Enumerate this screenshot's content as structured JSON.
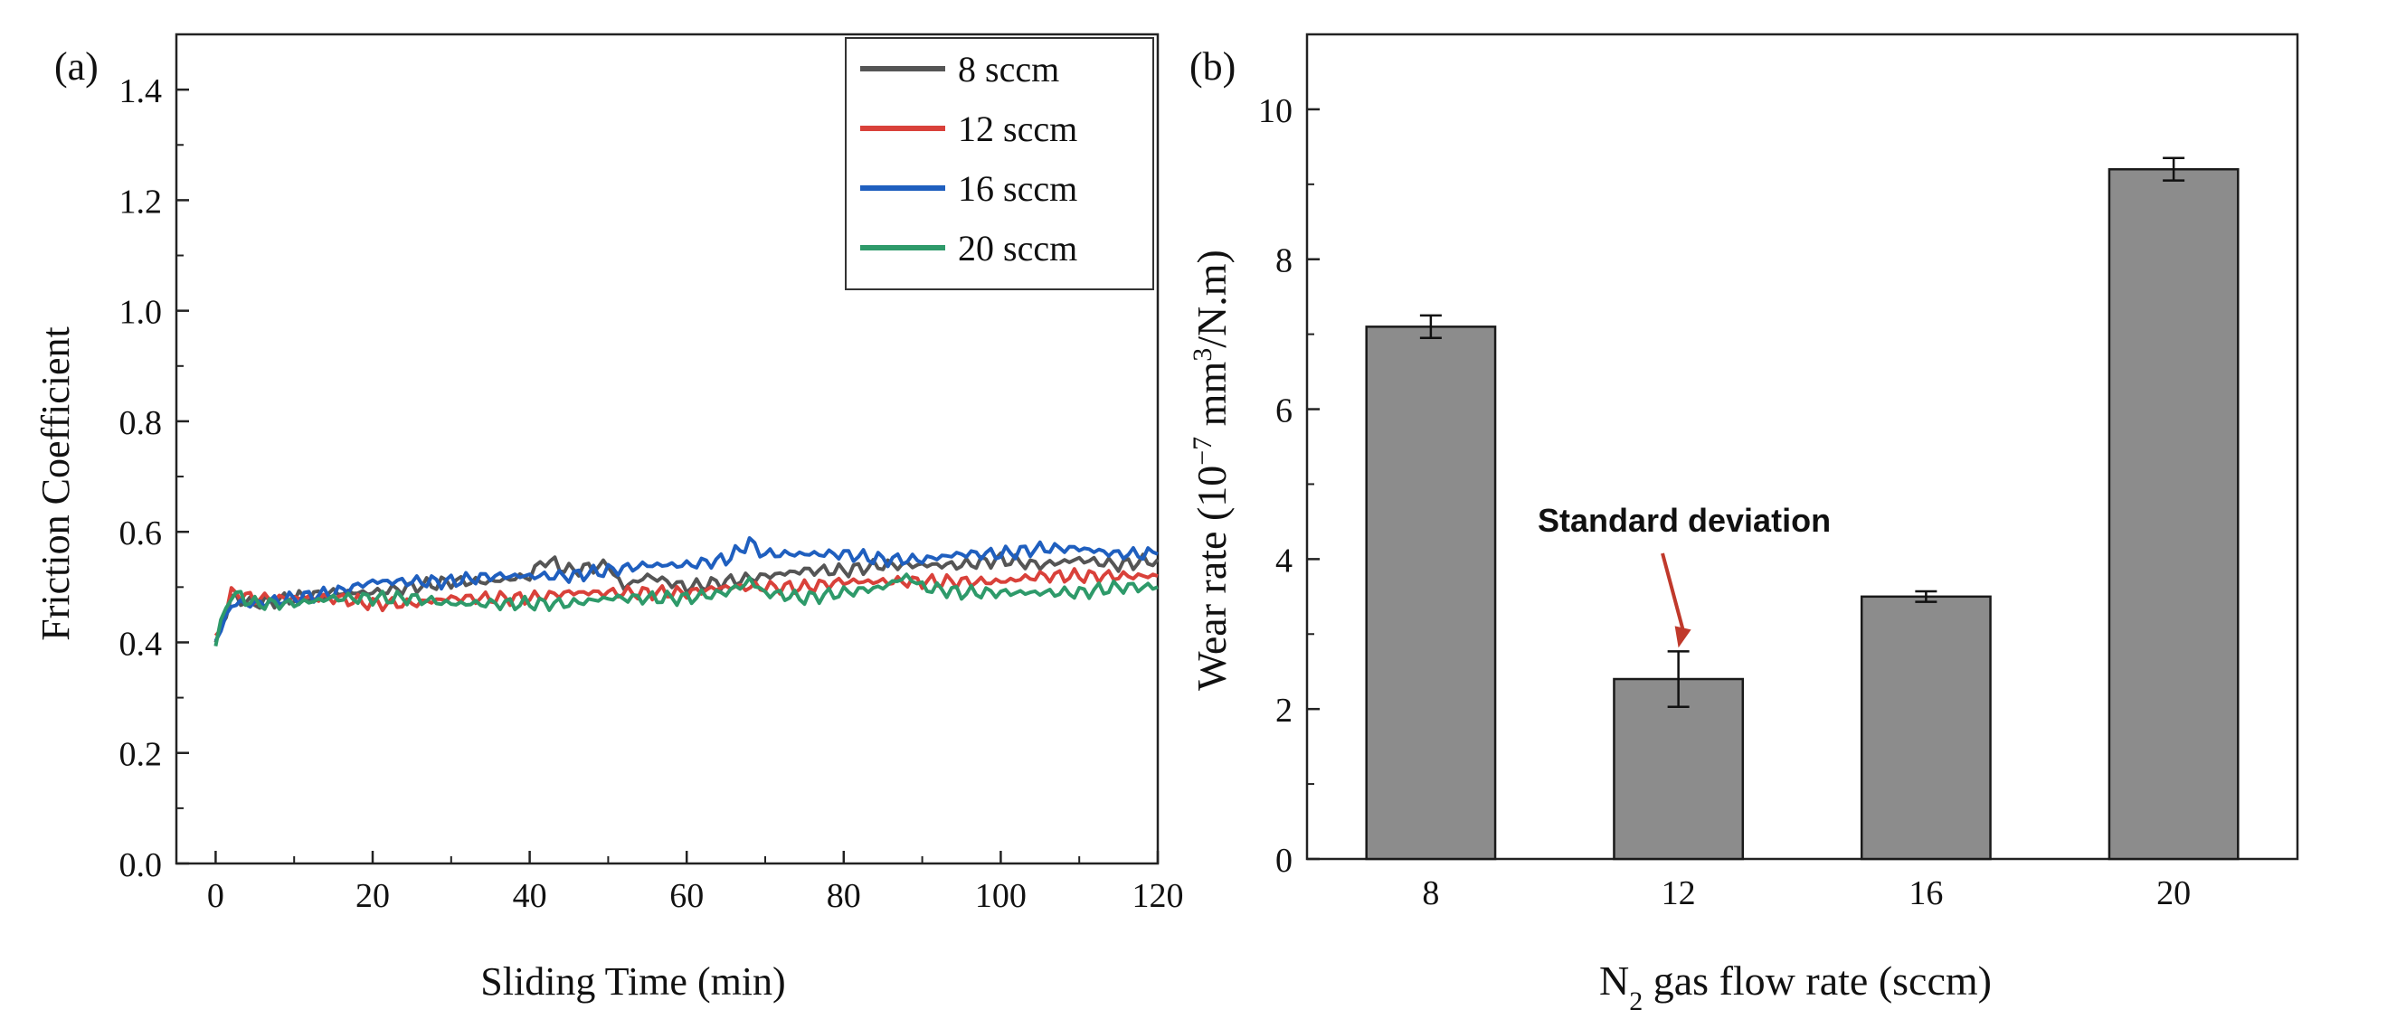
{
  "chart_data": [
    {
      "panel_label": "(a)",
      "type": "line",
      "title": "",
      "xlabel": "Sliding Time (min)",
      "ylabel": "Friction Coefficient",
      "xlim": [
        -5,
        120
      ],
      "ylim": [
        0.0,
        1.5
      ],
      "xticks": [
        "0",
        "20",
        "40",
        "60",
        "80",
        "100",
        "120"
      ],
      "yticks": [
        "0.0",
        "0.2",
        "0.4",
        "0.6",
        "0.8",
        "1.0",
        "1.2",
        "1.4"
      ],
      "legend_position": "top-right",
      "series": [
        {
          "name": "8 sccm",
          "color": "#555555",
          "x": [
            0,
            2,
            5,
            10,
            15,
            20,
            25,
            30,
            35,
            40,
            42,
            45,
            50,
            52,
            55,
            60,
            65,
            70,
            75,
            80,
            85,
            90,
            95,
            100,
            105,
            110,
            115,
            120
          ],
          "y": [
            0.4,
            0.48,
            0.47,
            0.48,
            0.49,
            0.49,
            0.5,
            0.51,
            0.51,
            0.52,
            0.55,
            0.53,
            0.54,
            0.5,
            0.52,
            0.5,
            0.51,
            0.52,
            0.53,
            0.53,
            0.54,
            0.54,
            0.54,
            0.55,
            0.54,
            0.55,
            0.54,
            0.55
          ]
        },
        {
          "name": "12 sccm",
          "color": "#d9413a",
          "x": [
            0,
            2,
            5,
            10,
            15,
            20,
            25,
            30,
            35,
            40,
            45,
            50,
            55,
            60,
            65,
            70,
            75,
            80,
            85,
            90,
            95,
            100,
            105,
            110,
            115,
            120
          ],
          "y": [
            0.4,
            0.49,
            0.48,
            0.48,
            0.48,
            0.47,
            0.47,
            0.48,
            0.48,
            0.48,
            0.49,
            0.49,
            0.49,
            0.49,
            0.5,
            0.5,
            0.5,
            0.51,
            0.51,
            0.51,
            0.51,
            0.51,
            0.52,
            0.52,
            0.52,
            0.52
          ]
        },
        {
          "name": "16 sccm",
          "color": "#1f5fbf",
          "x": [
            0,
            2,
            5,
            10,
            15,
            20,
            25,
            30,
            35,
            40,
            45,
            50,
            55,
            60,
            65,
            68,
            70,
            75,
            80,
            85,
            90,
            95,
            100,
            105,
            110,
            115,
            120
          ],
          "y": [
            0.4,
            0.47,
            0.47,
            0.48,
            0.49,
            0.51,
            0.51,
            0.51,
            0.52,
            0.52,
            0.52,
            0.53,
            0.54,
            0.54,
            0.55,
            0.58,
            0.56,
            0.56,
            0.56,
            0.55,
            0.55,
            0.56,
            0.56,
            0.57,
            0.57,
            0.56,
            0.56
          ]
        },
        {
          "name": "20 sccm",
          "color": "#2e9a6a",
          "x": [
            0,
            2,
            5,
            10,
            15,
            20,
            25,
            30,
            35,
            40,
            45,
            50,
            55,
            60,
            65,
            68,
            70,
            75,
            80,
            85,
            88,
            90,
            95,
            100,
            105,
            110,
            115,
            120
          ],
          "y": [
            0.4,
            0.49,
            0.47,
            0.47,
            0.48,
            0.48,
            0.48,
            0.47,
            0.47,
            0.47,
            0.47,
            0.48,
            0.48,
            0.48,
            0.49,
            0.51,
            0.49,
            0.48,
            0.49,
            0.5,
            0.52,
            0.5,
            0.49,
            0.49,
            0.49,
            0.49,
            0.5,
            0.5
          ]
        }
      ]
    },
    {
      "panel_label": "(b)",
      "type": "bar",
      "title": "",
      "xlabel": "N2 gas flow rate (sccm)",
      "ylabel": "Wear rate (10−7 mm3/N.m)",
      "categories": [
        "8",
        "12",
        "16",
        "20"
      ],
      "values": [
        7.1,
        2.4,
        3.5,
        9.2
      ],
      "errors": [
        0.15,
        0.37,
        0.07,
        0.15
      ],
      "ylim": [
        0,
        11
      ],
      "yticks": [
        "0",
        "2",
        "4",
        "6",
        "8",
        "10"
      ],
      "bar_color": "#8c8c8c",
      "annotation": {
        "text": "Standard deviation",
        "target_category": "12",
        "color": "#c0392b"
      }
    }
  ]
}
